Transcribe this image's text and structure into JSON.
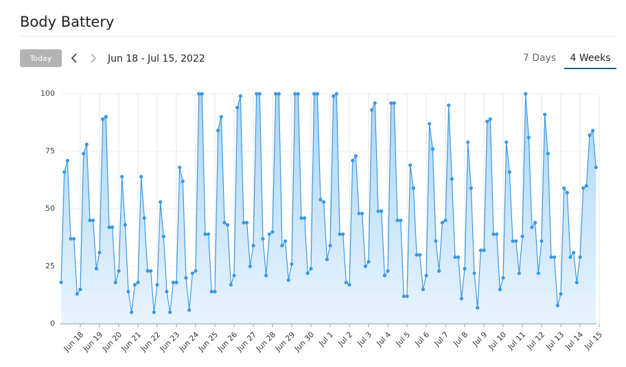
{
  "header": {
    "title": "Body Battery"
  },
  "toolbar": {
    "today": "Today",
    "date_range": "Jun 18 - Jul 15, 2022",
    "tabs": [
      "7 Days",
      "4 Weeks"
    ],
    "active_tab": 1
  },
  "chart_data": {
    "type": "area",
    "color": "#3b97e3",
    "grid": true,
    "ylim": [
      0,
      100
    ],
    "yticks": [
      0,
      25,
      50,
      75,
      100
    ],
    "xlim": [
      0,
      168
    ],
    "xticks": [
      {
        "value": 6,
        "label": "Jun 18"
      },
      {
        "value": 12,
        "label": "Jun 19"
      },
      {
        "value": 18,
        "label": "Jun 20"
      },
      {
        "value": 24,
        "label": "Jun 21"
      },
      {
        "value": 30,
        "label": "Jun 22"
      },
      {
        "value": 36,
        "label": "Jun 23"
      },
      {
        "value": 42,
        "label": "Jun 24"
      },
      {
        "value": 48,
        "label": "Jun 25"
      },
      {
        "value": 54,
        "label": "Jun 26"
      },
      {
        "value": 60,
        "label": "Jun 27"
      },
      {
        "value": 66,
        "label": "Jun 28"
      },
      {
        "value": 72,
        "label": "Jun 29"
      },
      {
        "value": 78,
        "label": "Jun 30"
      },
      {
        "value": 84,
        "label": "Jul 1"
      },
      {
        "value": 90,
        "label": "Jul 2"
      },
      {
        "value": 96,
        "label": "Jul 3"
      },
      {
        "value": 102,
        "label": "Jul 4"
      },
      {
        "value": 108,
        "label": "Jul 5"
      },
      {
        "value": 114,
        "label": "Jul 6"
      },
      {
        "value": 120,
        "label": "Jul 7"
      },
      {
        "value": 126,
        "label": "Jul 8"
      },
      {
        "value": 132,
        "label": "Jul 9"
      },
      {
        "value": 138,
        "label": "Jul 10"
      },
      {
        "value": 144,
        "label": "Jul 11"
      },
      {
        "value": 150,
        "label": "Jul 12"
      },
      {
        "value": 156,
        "label": "Jul 13"
      },
      {
        "value": 162,
        "label": "Jul 14"
      },
      {
        "value": 168,
        "label": "Jul 15"
      }
    ],
    "values": [
      18,
      66,
      71,
      37,
      37,
      13,
      15,
      74,
      78,
      45,
      45,
      24,
      31,
      89,
      90,
      42,
      42,
      18,
      23,
      64,
      43,
      14,
      5,
      17,
      18,
      64,
      46,
      23,
      23,
      5,
      17,
      53,
      38,
      14,
      5,
      18,
      18,
      68,
      62,
      20,
      6,
      22,
      23,
      100,
      100,
      39,
      39,
      14,
      14,
      84,
      90,
      44,
      43,
      17,
      21,
      94,
      99,
      44,
      44,
      25,
      34,
      100,
      100,
      37,
      21,
      39,
      40,
      100,
      100,
      34,
      36,
      19,
      26,
      100,
      100,
      46,
      46,
      22,
      24,
      100,
      100,
      54,
      53,
      28,
      34,
      99,
      100,
      39,
      39,
      18,
      17,
      71,
      73,
      48,
      48,
      25,
      27,
      93,
      96,
      49,
      49,
      21,
      23,
      96,
      96,
      45,
      45,
      12,
      12,
      69,
      59,
      30,
      30,
      15,
      21,
      87,
      76,
      36,
      23,
      44,
      45,
      95,
      63,
      29,
      29,
      11,
      24,
      79,
      59,
      22,
      7,
      32,
      32,
      88,
      89,
      39,
      39,
      15,
      20,
      79,
      66,
      36,
      36,
      22,
      38,
      100,
      81,
      42,
      44,
      22,
      36,
      91,
      74,
      29,
      29,
      8,
      13,
      59,
      57,
      29,
      31,
      18,
      29,
      59,
      60,
      82,
      84,
      68
    ]
  }
}
